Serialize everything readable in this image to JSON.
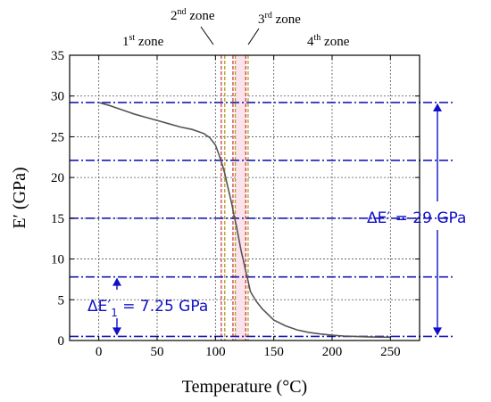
{
  "chart_data": {
    "type": "line",
    "xlabel": "Temperature (°C)",
    "ylabel": "E′ (GPa)",
    "xlim": [
      -25,
      275
    ],
    "ylim": [
      0,
      35
    ],
    "x_ticks": [
      0,
      50,
      100,
      150,
      200,
      250
    ],
    "y_ticks": [
      0,
      5,
      10,
      15,
      20,
      25,
      30,
      35
    ],
    "grid": true,
    "colors": {
      "curve": "#555555",
      "reference_lines": "#1a1ab4",
      "annotation": "#1010c8",
      "zone_band": "#fbe3ec",
      "zone_boundary_red": "#d24040",
      "zone_boundary_olive": "#b59a2a"
    },
    "series": [
      {
        "x": [
          0,
          10,
          20,
          30,
          40,
          50,
          60,
          70,
          80,
          90,
          95,
          100,
          103,
          106,
          108,
          110,
          112,
          114,
          116,
          118,
          120,
          122,
          124,
          126,
          128,
          130,
          135,
          140,
          150,
          160,
          170,
          180,
          190,
          200,
          210,
          220,
          230,
          240,
          250
        ],
        "y": [
          29.2,
          28.8,
          28.3,
          27.8,
          27.4,
          27.0,
          26.6,
          26.2,
          25.9,
          25.4,
          24.9,
          24.0,
          22.8,
          21.5,
          20.5,
          19.2,
          18.0,
          16.8,
          15.3,
          14.0,
          12.5,
          11.0,
          9.8,
          8.5,
          7.3,
          6.0,
          4.8,
          3.9,
          2.5,
          1.8,
          1.3,
          1.0,
          0.8,
          0.65,
          0.55,
          0.5,
          0.45,
          0.42,
          0.4
        ]
      }
    ],
    "reference_lines_y": [
      29.2,
      22.1,
      15.0,
      7.8,
      0.5
    ],
    "zone_boundaries_x": [
      105,
      108,
      115,
      117,
      126,
      128
    ],
    "zone_band_x": [
      117,
      126
    ],
    "zones": {
      "zone1": {
        "base": "1",
        "sup": "st",
        "tail": " zone"
      },
      "zone2": {
        "base": "2",
        "sup": "nd",
        "tail": " zone"
      },
      "zone3": {
        "base": "3",
        "sup": "rd",
        "tail": " zone"
      },
      "zone4": {
        "base": "4",
        "sup": "th",
        "tail": " zone"
      }
    },
    "annotations": {
      "delta_total": "ΔE′ = 29 GPa",
      "delta_partial_main": "ΔE′",
      "delta_partial_sub": "1",
      "delta_partial_value": " = 7.25 GPa"
    }
  }
}
